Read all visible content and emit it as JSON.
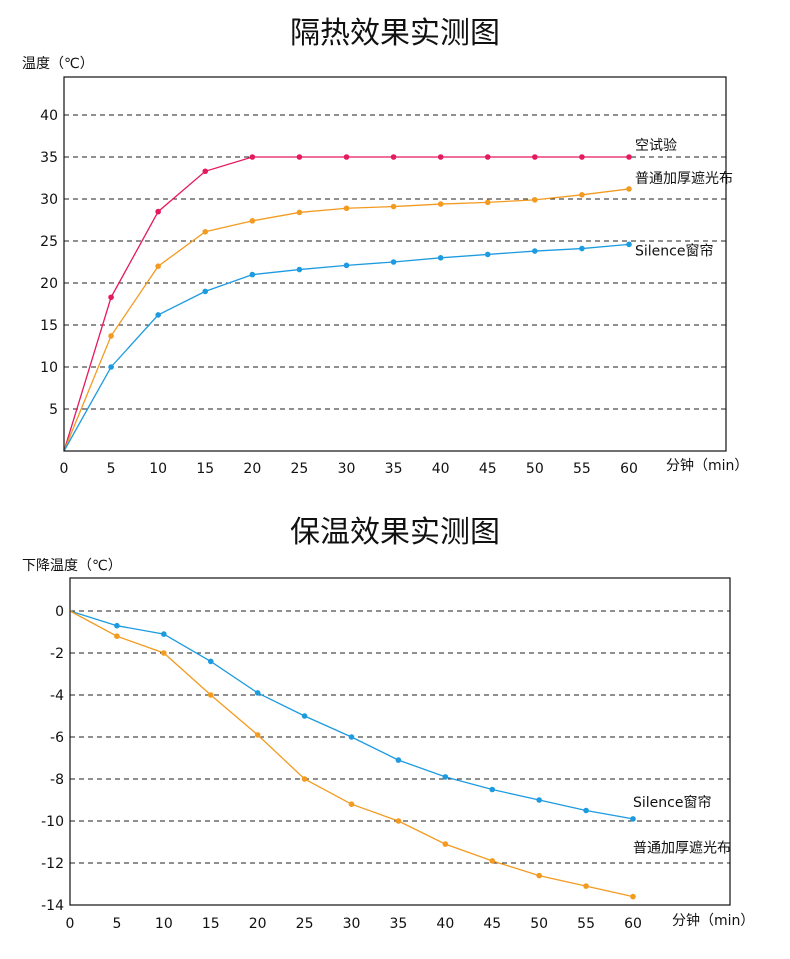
{
  "chart_data": [
    {
      "type": "line",
      "title": "隔热效果实测图",
      "ylabel": "温度（℃）",
      "xlabel": "分钟（min）",
      "x": [
        0,
        5,
        10,
        15,
        20,
        25,
        30,
        35,
        40,
        45,
        50,
        55,
        60
      ],
      "xticks": [
        0,
        5,
        10,
        15,
        20,
        25,
        30,
        35,
        40,
        45,
        50,
        55,
        60
      ],
      "yticks": [
        5,
        10,
        15,
        20,
        25,
        30,
        35,
        40
      ],
      "origin_label": "0",
      "xlim": [
        0,
        60
      ],
      "ylim": [
        0,
        40
      ],
      "grid": true,
      "series": [
        {
          "name": "空试验",
          "color": "#e5195e",
          "values": [
            0,
            18.3,
            28.5,
            33.3,
            35,
            35,
            35,
            35,
            35,
            35,
            35,
            35,
            35
          ]
        },
        {
          "name": "普通加厚遮光布",
          "color": "#f39b21",
          "values": [
            0,
            13.7,
            22,
            26.1,
            27.4,
            28.4,
            28.9,
            29.1,
            29.4,
            29.6,
            29.9,
            30.5,
            31.2
          ]
        },
        {
          "name": "Silence窗帘",
          "color": "#1d9be0",
          "values": [
            0,
            10,
            16.2,
            19,
            21,
            21.6,
            22.1,
            22.5,
            23,
            23.4,
            23.8,
            24.1,
            24.6
          ]
        }
      ]
    },
    {
      "type": "line",
      "title": "保温效果实测图",
      "ylabel": "下降温度（℃）",
      "xlabel": "分钟（min）",
      "x": [
        0,
        5,
        10,
        15,
        20,
        25,
        30,
        35,
        40,
        45,
        50,
        55,
        60
      ],
      "xticks": [
        0,
        5,
        10,
        15,
        20,
        25,
        30,
        35,
        40,
        45,
        50,
        55,
        60
      ],
      "yticks": [
        0,
        -2,
        -4,
        -6,
        -8,
        -10,
        -12,
        -14
      ],
      "xlim": [
        0,
        60
      ],
      "ylim": [
        -14,
        0
      ],
      "grid": true,
      "series": [
        {
          "name": "Silence窗帘",
          "color": "#1d9be0",
          "values": [
            0,
            -0.7,
            -1.1,
            -2.4,
            -3.9,
            -5,
            -6,
            -7.1,
            -7.9,
            -8.5,
            -9,
            -9.5,
            -9.9
          ]
        },
        {
          "name": "普通加厚遮光布",
          "color": "#f39b21",
          "values": [
            0,
            -1.2,
            -2,
            -4,
            -5.9,
            -8,
            -9.2,
            -10,
            -11.1,
            -11.9,
            -12.6,
            -13.1,
            -13.6
          ]
        }
      ]
    }
  ]
}
